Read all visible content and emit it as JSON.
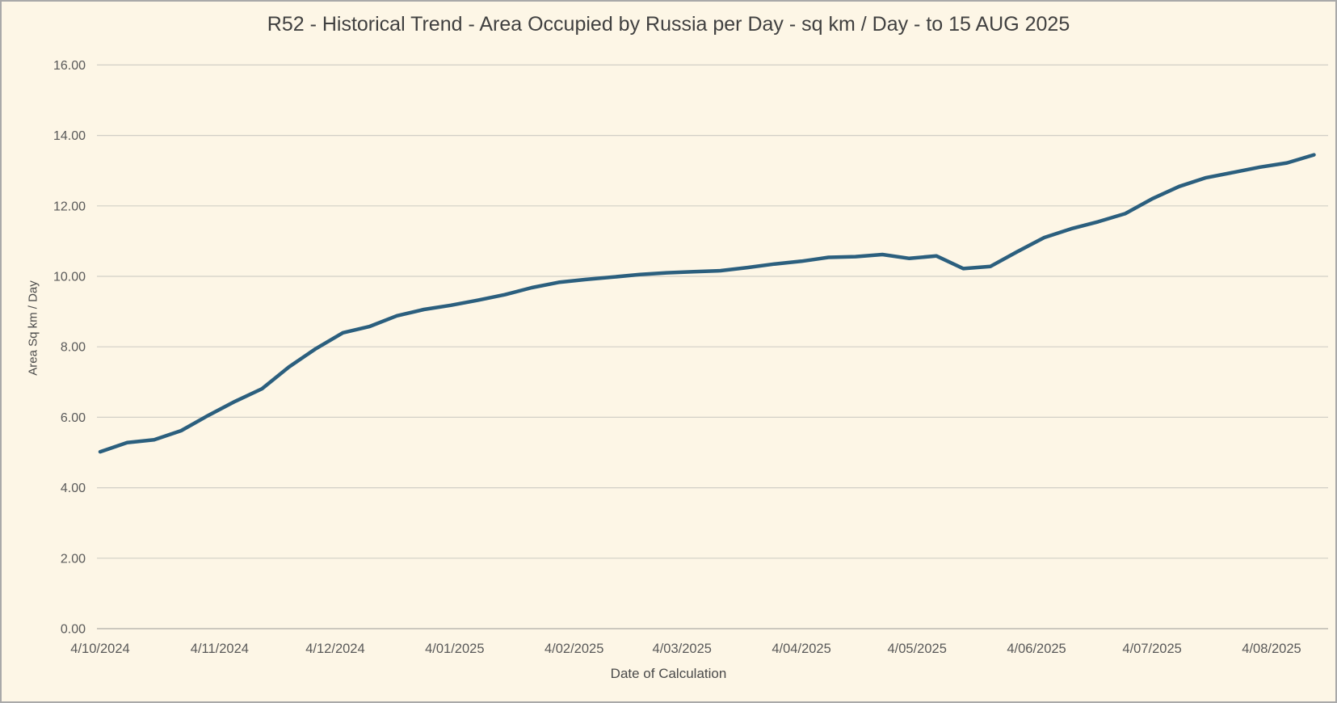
{
  "chart_data": {
    "type": "line",
    "title": "R52 - Historical Trend - Area Occupied by Russia per Day - sq km / Day - to 15 AUG 2025",
    "xlabel": "Date of Calculation",
    "ylabel": "Area Sq km / Day",
    "ylim": [
      0,
      16
    ],
    "ytick_step": 2,
    "ytick_labels": [
      "0.00",
      "2.00",
      "4.00",
      "6.00",
      "8.00",
      "10.00",
      "12.00",
      "14.00",
      "16.00"
    ],
    "grid": "horizontal",
    "legend": "none",
    "interval_days": 7,
    "xticks": [
      {
        "label": "4/10/2024",
        "day": 0
      },
      {
        "label": "4/11/2024",
        "day": 31
      },
      {
        "label": "4/12/2024",
        "day": 61
      },
      {
        "label": "4/01/2025",
        "day": 92
      },
      {
        "label": "4/02/2025",
        "day": 123
      },
      {
        "label": "4/03/2025",
        "day": 151
      },
      {
        "label": "4/04/2025",
        "day": 182
      },
      {
        "label": "4/05/2025",
        "day": 212
      },
      {
        "label": "4/06/2025",
        "day": 243
      },
      {
        "label": "4/07/2025",
        "day": 273
      },
      {
        "label": "4/08/2025",
        "day": 304
      }
    ],
    "points": [
      {
        "date": "4/10/2024",
        "value": 5.02
      },
      {
        "date": "11/10/2024",
        "value": 5.28
      },
      {
        "date": "18/10/2024",
        "value": 5.36
      },
      {
        "date": "25/10/2024",
        "value": 5.62
      },
      {
        "date": "1/11/2024",
        "value": 6.05
      },
      {
        "date": "8/11/2024",
        "value": 6.45
      },
      {
        "date": "15/11/2024",
        "value": 6.81
      },
      {
        "date": "22/11/2024",
        "value": 7.43
      },
      {
        "date": "29/11/2024",
        "value": 7.95
      },
      {
        "date": "6/12/2024",
        "value": 8.4
      },
      {
        "date": "13/12/2024",
        "value": 8.58
      },
      {
        "date": "20/12/2024",
        "value": 8.88
      },
      {
        "date": "27/12/2024",
        "value": 9.06
      },
      {
        "date": "3/01/2025",
        "value": 9.18
      },
      {
        "date": "10/01/2025",
        "value": 9.32
      },
      {
        "date": "17/01/2025",
        "value": 9.48
      },
      {
        "date": "24/01/2025",
        "value": 9.68
      },
      {
        "date": "31/01/2025",
        "value": 9.83
      },
      {
        "date": "7/02/2025",
        "value": 9.91
      },
      {
        "date": "14/02/2025",
        "value": 9.98
      },
      {
        "date": "21/02/2025",
        "value": 10.05
      },
      {
        "date": "28/02/2025",
        "value": 10.1
      },
      {
        "date": "7/03/2025",
        "value": 10.13
      },
      {
        "date": "14/03/2025",
        "value": 10.16
      },
      {
        "date": "21/03/2025",
        "value": 10.25
      },
      {
        "date": "28/03/2025",
        "value": 10.35
      },
      {
        "date": "4/04/2025",
        "value": 10.43
      },
      {
        "date": "11/04/2025",
        "value": 10.54
      },
      {
        "date": "18/04/2025",
        "value": 10.56
      },
      {
        "date": "25/04/2025",
        "value": 10.62
      },
      {
        "date": "2/05/2025",
        "value": 10.51
      },
      {
        "date": "9/05/2025",
        "value": 10.58
      },
      {
        "date": "16/05/2025",
        "value": 10.22
      },
      {
        "date": "23/05/2025",
        "value": 10.28
      },
      {
        "date": "30/05/2025",
        "value": 10.7
      },
      {
        "date": "6/06/2025",
        "value": 11.1
      },
      {
        "date": "13/06/2025",
        "value": 11.35
      },
      {
        "date": "20/06/2025",
        "value": 11.55
      },
      {
        "date": "27/06/2025",
        "value": 11.78
      },
      {
        "date": "4/07/2025",
        "value": 12.2
      },
      {
        "date": "11/07/2025",
        "value": 12.55
      },
      {
        "date": "18/07/2025",
        "value": 12.8
      },
      {
        "date": "25/07/2025",
        "value": 12.95
      },
      {
        "date": "1/08/2025",
        "value": 13.1
      },
      {
        "date": "8/08/2025",
        "value": 13.22
      },
      {
        "date": "15/08/2025",
        "value": 13.45
      }
    ],
    "colors": {
      "background": "#fdf6e6",
      "line": "#2b5f7e",
      "grid": "#d2cfc6",
      "axis": "#bcb9b0",
      "tick_text": "#595959",
      "title_text": "#404040"
    }
  }
}
